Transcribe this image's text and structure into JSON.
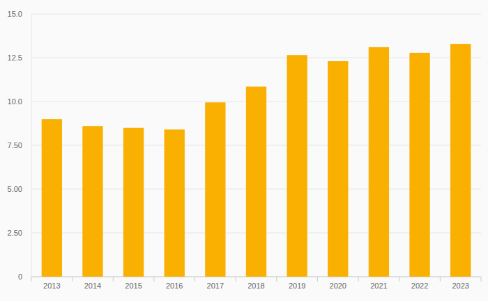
{
  "chart_data": {
    "type": "bar",
    "categories": [
      "2013",
      "2014",
      "2015",
      "2016",
      "2017",
      "2018",
      "2019",
      "2020",
      "2021",
      "2022",
      "2023"
    ],
    "values": [
      9.0,
      8.6,
      8.5,
      8.4,
      9.95,
      10.85,
      12.65,
      12.3,
      13.1,
      12.78,
      13.29
    ],
    "color": "#f9b000",
    "ylim": [
      0,
      15
    ],
    "yticks": [
      0,
      {
        "value": 2.5,
        "label": "2.50"
      },
      {
        "value": 5,
        "label": "5.00"
      },
      {
        "value": 7.5,
        "label": "7.50"
      },
      {
        "value": 10,
        "label": "10.0"
      },
      {
        "value": 12.5,
        "label": "12.5"
      },
      {
        "value": 15,
        "label": "15.0"
      }
    ],
    "grid": true
  }
}
